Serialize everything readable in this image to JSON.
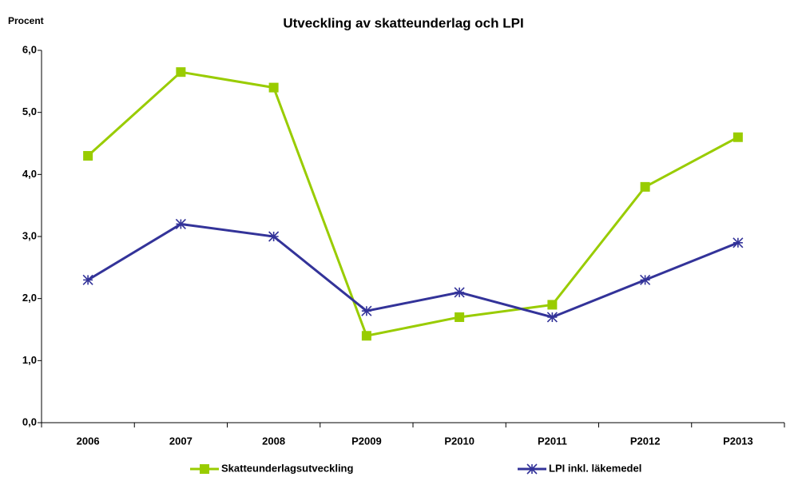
{
  "chart_data": {
    "type": "line",
    "title": "Utveckling av skatteunderlag och LPI",
    "y_label": "Procent",
    "categories": [
      "2006",
      "2007",
      "2008",
      "P2009",
      "P2010",
      "P2011",
      "P2012",
      "P2013"
    ],
    "series": [
      {
        "name": "Skatteunderlagsutveckling",
        "color": "#99cc00",
        "marker": "square",
        "values": [
          4.3,
          5.65,
          5.4,
          1.4,
          1.7,
          1.9,
          3.8,
          4.6
        ]
      },
      {
        "name": "LPI inkl. läkemedel",
        "color": "#333399",
        "marker": "star",
        "values": [
          2.3,
          3.2,
          3.0,
          1.8,
          2.1,
          1.7,
          2.3,
          2.9
        ]
      }
    ],
    "ylim": [
      0,
      6
    ],
    "yticks": [
      {
        "value": 0,
        "label": "0,0"
      },
      {
        "value": 1,
        "label": "1,0"
      },
      {
        "value": 2,
        "label": "2,0"
      },
      {
        "value": 3,
        "label": "3,0"
      },
      {
        "value": 4,
        "label": "4,0"
      },
      {
        "value": 5,
        "label": "5,0"
      },
      {
        "value": 6,
        "label": "6,0"
      }
    ],
    "grid": false,
    "legend": "bottom"
  }
}
